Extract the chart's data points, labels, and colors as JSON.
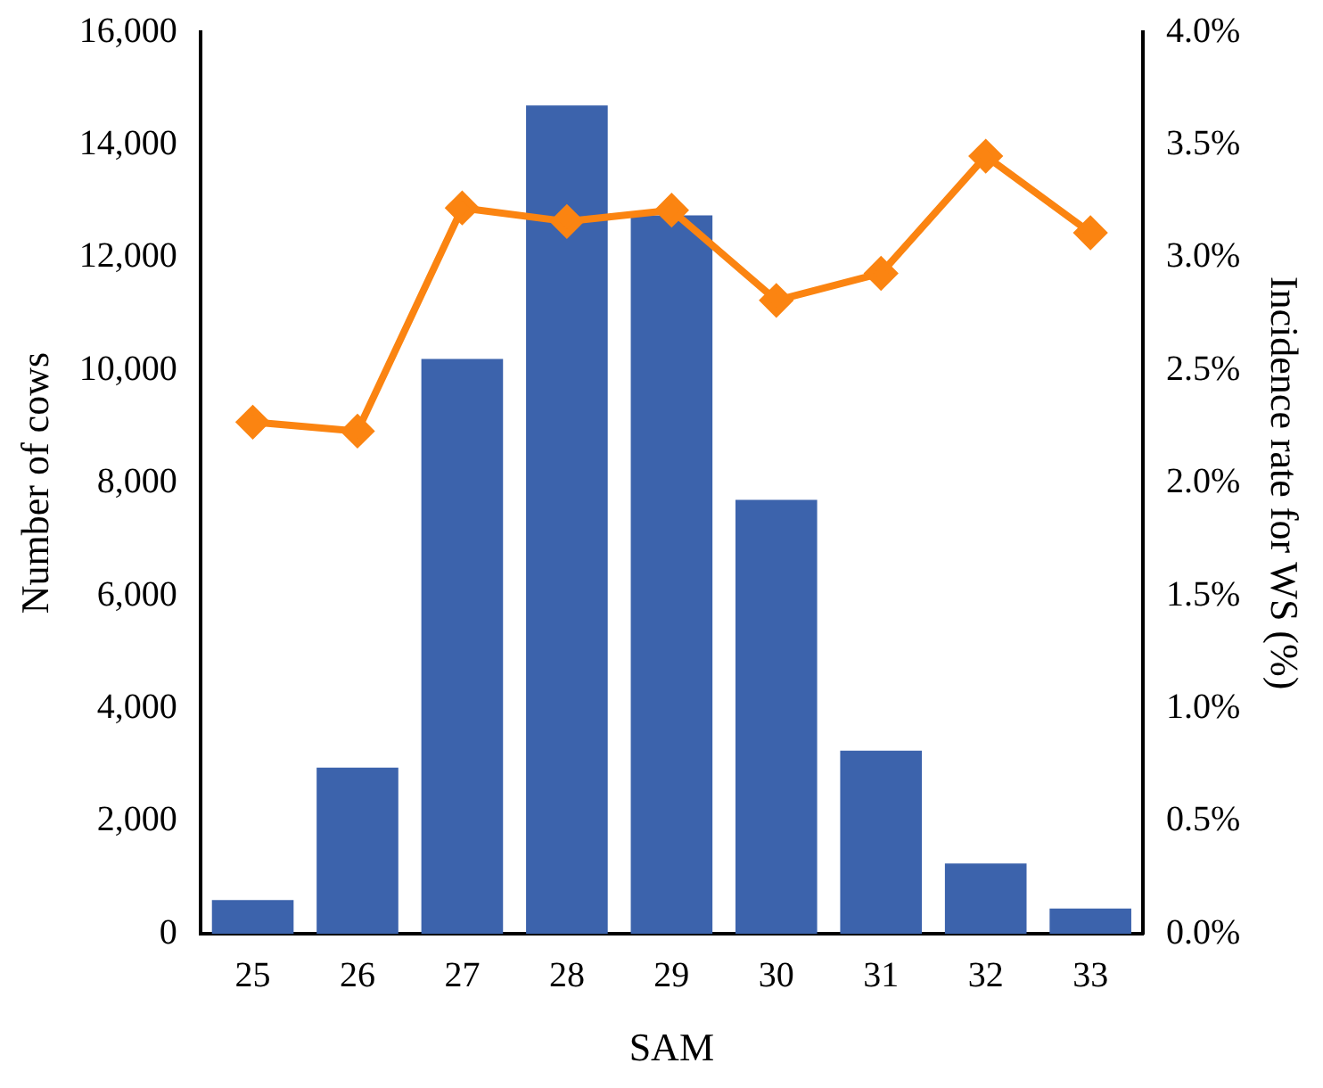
{
  "chart_data": {
    "type": "bar",
    "xlabel": "SAM",
    "ylabel": "Number of cows",
    "y2label": "Incidence rate for WS (%)",
    "categories": [
      "25",
      "26",
      "27",
      "28",
      "29",
      "30",
      "31",
      "32",
      "33"
    ],
    "series": [
      {
        "color": "#3c63ac",
        "values": [
          600,
          2950,
          10200,
          14700,
          12750,
          7700,
          3250,
          1250,
          450
        ]
      },
      {
        "type": "line",
        "axis": "y2",
        "color": "#fb8411",
        "marker": "diamond",
        "line_style": "solid",
        "values": [
          2.27,
          2.23,
          3.22,
          3.16,
          3.21,
          2.81,
          2.93,
          3.45,
          3.11
        ]
      }
    ],
    "ylim": [
      0,
      16000
    ],
    "yticks": [
      {
        "value": 0,
        "label": "0"
      },
      {
        "value": 2000,
        "label": "2,000"
      },
      {
        "value": 4000,
        "label": "4,000"
      },
      {
        "value": 6000,
        "label": "6,000"
      },
      {
        "value": 8000,
        "label": "8,000"
      },
      {
        "value": 10000,
        "label": "10,000"
      },
      {
        "value": 12000,
        "label": "12,000"
      },
      {
        "value": 14000,
        "label": "14,000"
      },
      {
        "value": 16000,
        "label": "16,000"
      }
    ],
    "y2lim": [
      0,
      4
    ],
    "y2ticks": [
      {
        "value": 0,
        "label": "0.0%"
      },
      {
        "value": 0.5,
        "label": "0.5%"
      },
      {
        "value": 1,
        "label": "1.0%"
      },
      {
        "value": 1.5,
        "label": "1.5%"
      },
      {
        "value": 2,
        "label": "2.0%"
      },
      {
        "value": 2.5,
        "label": "2.5%"
      },
      {
        "value": 3,
        "label": "3.0%"
      },
      {
        "value": 3.5,
        "label": "3.5%"
      },
      {
        "value": 4,
        "label": "4.0%"
      }
    ],
    "grid": false,
    "legend": false
  }
}
